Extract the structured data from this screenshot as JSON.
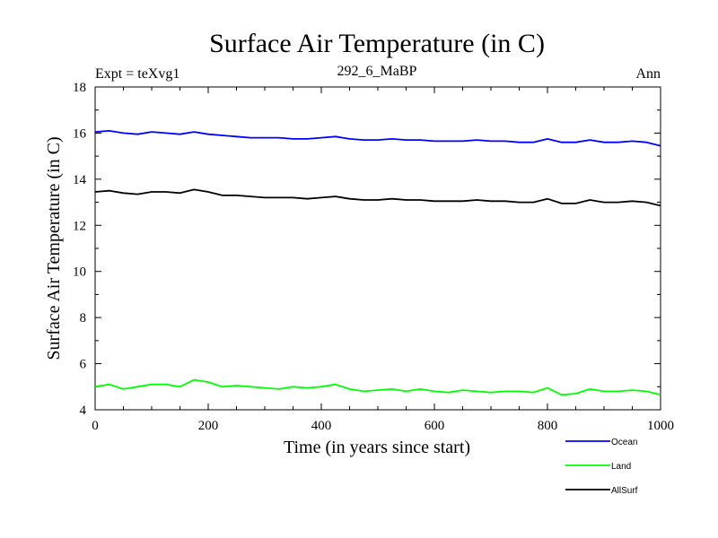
{
  "chart_data": {
    "type": "line",
    "title": "Surface Air Temperature (in C)",
    "subtitle_left": "Expt = teXvg1",
    "subtitle_center": "292_6_MaBP",
    "subtitle_right": "Ann",
    "xlabel": "Time (in years since start)",
    "ylabel": "Surface Air Temperature (in C)",
    "xlim": [
      0,
      1000
    ],
    "ylim": [
      4,
      18
    ],
    "xticks": [
      0,
      200,
      400,
      600,
      800,
      1000
    ],
    "yticks": [
      4,
      6,
      8,
      10,
      12,
      14,
      16,
      18
    ],
    "grid": false,
    "legend_position": "bottom-right",
    "x": [
      0,
      25,
      50,
      75,
      100,
      125,
      150,
      175,
      200,
      225,
      250,
      275,
      300,
      325,
      350,
      375,
      400,
      425,
      450,
      475,
      500,
      525,
      550,
      575,
      600,
      625,
      650,
      675,
      700,
      725,
      750,
      775,
      800,
      825,
      850,
      875,
      900,
      925,
      950,
      975,
      1000
    ],
    "series": [
      {
        "name": "Ocean",
        "color": "#0000ff",
        "values": [
          16.05,
          16.1,
          16.0,
          15.95,
          16.05,
          16.0,
          15.95,
          16.05,
          15.95,
          15.9,
          15.85,
          15.8,
          15.8,
          15.8,
          15.75,
          15.75,
          15.8,
          15.85,
          15.75,
          15.7,
          15.7,
          15.75,
          15.7,
          15.7,
          15.65,
          15.65,
          15.65,
          15.7,
          15.65,
          15.65,
          15.6,
          15.6,
          15.75,
          15.6,
          15.6,
          15.7,
          15.6,
          15.6,
          15.65,
          15.6,
          15.45
        ]
      },
      {
        "name": "Land",
        "color": "#00ff00",
        "values": [
          5.0,
          5.1,
          4.9,
          5.0,
          5.1,
          5.1,
          5.0,
          5.3,
          5.2,
          5.0,
          5.05,
          5.0,
          4.95,
          4.9,
          5.0,
          4.95,
          5.0,
          5.1,
          4.9,
          4.8,
          4.85,
          4.9,
          4.8,
          4.9,
          4.8,
          4.75,
          4.85,
          4.8,
          4.75,
          4.8,
          4.8,
          4.75,
          4.95,
          4.65,
          4.7,
          4.9,
          4.8,
          4.8,
          4.85,
          4.8,
          4.65
        ]
      },
      {
        "name": "AllSurf",
        "color": "#000000",
        "values": [
          13.45,
          13.5,
          13.4,
          13.35,
          13.45,
          13.45,
          13.4,
          13.55,
          13.45,
          13.3,
          13.3,
          13.25,
          13.2,
          13.2,
          13.2,
          13.15,
          13.2,
          13.25,
          13.15,
          13.1,
          13.1,
          13.15,
          13.1,
          13.1,
          13.05,
          13.05,
          13.05,
          13.1,
          13.05,
          13.05,
          13.0,
          13.0,
          13.15,
          12.95,
          12.95,
          13.1,
          13.0,
          13.0,
          13.05,
          13.0,
          12.85
        ]
      }
    ]
  }
}
